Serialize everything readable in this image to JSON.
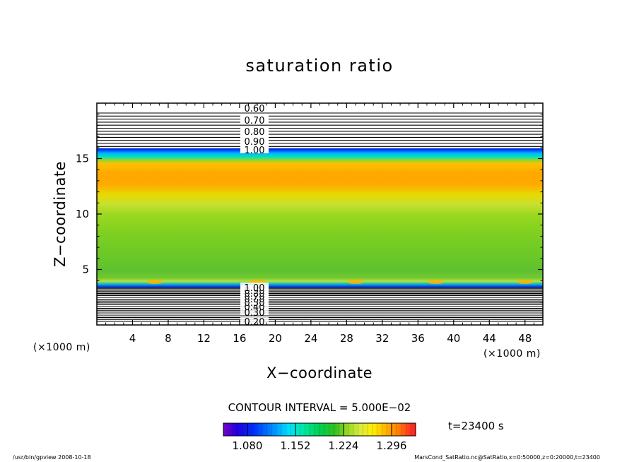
{
  "chart_data": {
    "type": "heatmap",
    "title": "saturation ratio",
    "xlabel": "X−coordinate",
    "ylabel": "Z−coordinate",
    "x_unit_label": "(×1000 m)",
    "y_unit_label": "(×1000 m)",
    "x_range": [
      0,
      50
    ],
    "y_range": [
      0,
      20
    ],
    "x_ticks": [
      4,
      8,
      12,
      16,
      20,
      24,
      28,
      32,
      36,
      40,
      44,
      48
    ],
    "y_ticks": [
      5,
      10,
      15
    ],
    "grid": false,
    "upper_contour_labels": [
      "0.60",
      "0.70",
      "0.80",
      "0.90",
      "1.00"
    ],
    "lower_contour_labels": [
      "0.20",
      "0.30",
      "0.40",
      "0.50",
      "0.60",
      "0.70",
      "0.80",
      "0.90",
      "1.00"
    ],
    "contour_interval_text": "CONTOUR INTERVAL = 5.000E−02",
    "colorbar": {
      "min": 1.044,
      "max": 1.332,
      "tick_values": [
        1.08,
        1.152,
        1.224,
        1.296
      ],
      "tick_labels": [
        "1.080",
        "1.152",
        "1.224",
        "1.296"
      ],
      "colors": [
        "#7a00c8",
        "#2000e0",
        "#0030ff",
        "#0090ff",
        "#00e0ff",
        "#00e8a0",
        "#00d050",
        "#30c020",
        "#90d820",
        "#c8e830",
        "#ffee00",
        "#ffb000",
        "#ff8000",
        "#ff4000",
        "#ff0000"
      ]
    },
    "layers": [
      {
        "z_bottom": 0.0,
        "z_top": 3.4,
        "value": "below 1.00 (contour lines)"
      },
      {
        "z_bottom": 3.4,
        "z_top": 4.4,
        "value": 1.2
      },
      {
        "z_bottom": 4.4,
        "z_top": 12.0,
        "value": 1.2
      },
      {
        "z_bottom": 12.0,
        "z_top": 15.2,
        "value": 1.27
      },
      {
        "z_bottom": 15.2,
        "z_top": 16.1,
        "value": 1.1
      },
      {
        "z_bottom": 16.1,
        "z_top": 20.0,
        "value": "below 1.00 (contour lines)"
      }
    ],
    "time_label": "t=23400 s"
  },
  "footer": {
    "left": "/usr/bin/gpview   2008-10-18",
    "right": "MarsCond_SatRatio.nc@SatRatio,x=0:50000,z=0:20000,t=23400"
  }
}
